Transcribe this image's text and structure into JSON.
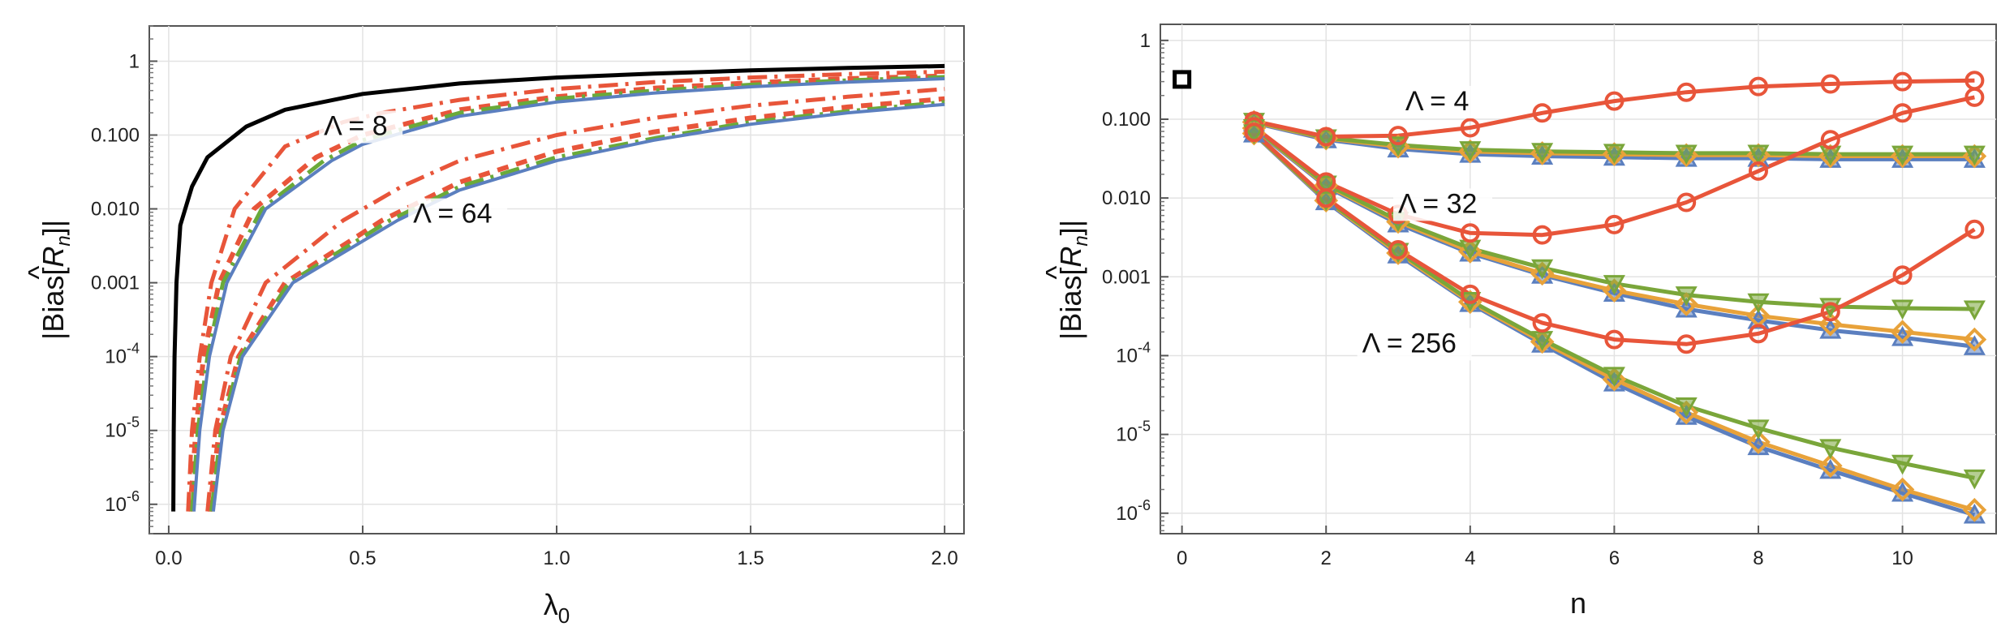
{
  "chart_data": [
    {
      "type": "line",
      "xscale": "linear",
      "yscale": "log",
      "xlim": [
        -0.05,
        2.05
      ],
      "ylim": [
        4e-07,
        3
      ],
      "xlabel": "λ",
      "xlabel_sub": "0",
      "ylabel_parts": {
        "pre": "|Bias[",
        "hat": "^",
        "R": "R",
        "sub": "n",
        "post": "]|"
      },
      "grid": true,
      "xticks": [
        0,
        0.5,
        1,
        1.5,
        2
      ],
      "xtick_labels": [
        "0.0",
        "0.5",
        "1.0",
        "1.5",
        "2.0"
      ],
      "yticks": [
        {
          "value": 1e-06,
          "mant": "10",
          "exp": "-6"
        },
        {
          "value": 1e-05,
          "mant": "10",
          "exp": "-5"
        },
        {
          "value": 0.0001,
          "mant": "10",
          "exp": "-4"
        },
        {
          "value": 0.001,
          "text": "0.001"
        },
        {
          "value": 0.01,
          "text": "0.010"
        },
        {
          "value": 0.1,
          "text": "0.100"
        },
        {
          "value": 1,
          "text": "1"
        }
      ],
      "annotations": [
        {
          "text": "Λ = 8",
          "x": 0.4,
          "y": 0.1
        },
        {
          "text": "Λ = 64",
          "x": 0.63,
          "y": 0.0065
        }
      ],
      "series": [
        {
          "color": "#000000",
          "style": "solid",
          "width": 5,
          "points": [
            [
              0.012,
              8e-07
            ],
            [
              0.013,
              1e-05
            ],
            [
              0.015,
              0.0001
            ],
            [
              0.02,
              0.001
            ],
            [
              0.03,
              0.006
            ],
            [
              0.06,
              0.02
            ],
            [
              0.1,
              0.05
            ],
            [
              0.2,
              0.13
            ],
            [
              0.3,
              0.22
            ],
            [
              0.5,
              0.36
            ],
            [
              0.75,
              0.5
            ],
            [
              1.0,
              0.6
            ],
            [
              1.25,
              0.68
            ],
            [
              1.5,
              0.75
            ],
            [
              1.75,
              0.81
            ],
            [
              2.0,
              0.86
            ]
          ]
        },
        {
          "color": "#e8553a",
          "style": "dashdot",
          "width": 5,
          "points": [
            [
              0.05,
              8e-07
            ],
            [
              0.06,
              1e-05
            ],
            [
              0.08,
              0.0001
            ],
            [
              0.11,
              0.001
            ],
            [
              0.17,
              0.01
            ],
            [
              0.3,
              0.07
            ],
            [
              0.45,
              0.15
            ],
            [
              0.55,
              0.2
            ],
            [
              0.75,
              0.3
            ],
            [
              1.0,
              0.42
            ],
            [
              1.25,
              0.52
            ],
            [
              1.5,
              0.6
            ],
            [
              1.75,
              0.67
            ],
            [
              2.0,
              0.72
            ]
          ]
        },
        {
          "color": "#e8553a",
          "style": "dashed",
          "width": 6,
          "points": [
            [
              0.055,
              8e-07
            ],
            [
              0.07,
              1e-05
            ],
            [
              0.09,
              0.0001
            ],
            [
              0.13,
              0.001
            ],
            [
              0.22,
              0.01
            ],
            [
              0.38,
              0.05
            ],
            [
              0.5,
              0.1
            ],
            [
              0.75,
              0.22
            ],
            [
              1.0,
              0.33
            ],
            [
              1.25,
              0.43
            ],
            [
              1.5,
              0.51
            ],
            [
              1.75,
              0.58
            ],
            [
              2.0,
              0.63
            ]
          ]
        },
        {
          "color": "#6aaa3a",
          "style": "dashdot",
          "width": 5,
          "points": [
            [
              0.06,
              8e-07
            ],
            [
              0.075,
              1e-05
            ],
            [
              0.1,
              0.0001
            ],
            [
              0.14,
              0.001
            ],
            [
              0.24,
              0.01
            ],
            [
              0.4,
              0.045
            ],
            [
              0.5,
              0.085
            ],
            [
              0.75,
              0.2
            ],
            [
              1.0,
              0.31
            ],
            [
              1.25,
              0.4
            ],
            [
              1.5,
              0.48
            ],
            [
              1.75,
              0.55
            ],
            [
              2.0,
              0.61
            ]
          ]
        },
        {
          "color": "#5b7fbf",
          "style": "solid",
          "width": 4,
          "points": [
            [
              0.065,
              8e-07
            ],
            [
              0.08,
              1e-05
            ],
            [
              0.105,
              0.0001
            ],
            [
              0.15,
              0.001
            ],
            [
              0.25,
              0.01
            ],
            [
              0.42,
              0.045
            ],
            [
              0.5,
              0.075
            ],
            [
              0.75,
              0.18
            ],
            [
              1.0,
              0.28
            ],
            [
              1.25,
              0.37
            ],
            [
              1.5,
              0.45
            ],
            [
              1.75,
              0.52
            ],
            [
              2.0,
              0.58
            ]
          ]
        },
        {
          "color": "#e8553a",
          "style": "dashdot",
          "width": 5,
          "points": [
            [
              0.1,
              8e-07
            ],
            [
              0.12,
              1e-05
            ],
            [
              0.16,
              0.0001
            ],
            [
              0.25,
              0.001
            ],
            [
              0.45,
              0.007
            ],
            [
              0.6,
              0.02
            ],
            [
              0.75,
              0.045
            ],
            [
              1.0,
              0.1
            ],
            [
              1.25,
              0.17
            ],
            [
              1.5,
              0.25
            ],
            [
              1.75,
              0.33
            ],
            [
              2.0,
              0.42
            ]
          ]
        },
        {
          "color": "#e8553a",
          "style": "dashed",
          "width": 6,
          "points": [
            [
              0.105,
              8e-07
            ],
            [
              0.13,
              1e-05
            ],
            [
              0.18,
              0.0001
            ],
            [
              0.3,
              0.001
            ],
            [
              0.55,
              0.007
            ],
            [
              0.75,
              0.023
            ],
            [
              1.0,
              0.06
            ],
            [
              1.25,
              0.11
            ],
            [
              1.5,
              0.17
            ],
            [
              1.75,
              0.24
            ],
            [
              2.0,
              0.31
            ]
          ]
        },
        {
          "color": "#6aaa3a",
          "style": "dashdot",
          "width": 5,
          "points": [
            [
              0.11,
              8e-07
            ],
            [
              0.135,
              1e-05
            ],
            [
              0.185,
              0.0001
            ],
            [
              0.31,
              0.001
            ],
            [
              0.57,
              0.007
            ],
            [
              0.75,
              0.02
            ],
            [
              1.0,
              0.05
            ],
            [
              1.25,
              0.09
            ],
            [
              1.5,
              0.15
            ],
            [
              1.75,
              0.21
            ],
            [
              2.0,
              0.28
            ]
          ]
        },
        {
          "color": "#5b7fbf",
          "style": "solid",
          "width": 4,
          "points": [
            [
              0.115,
              8e-07
            ],
            [
              0.14,
              1e-05
            ],
            [
              0.19,
              0.0001
            ],
            [
              0.32,
              0.001
            ],
            [
              0.59,
              0.007
            ],
            [
              0.75,
              0.018
            ],
            [
              1.0,
              0.045
            ],
            [
              1.25,
              0.085
            ],
            [
              1.5,
              0.14
            ],
            [
              1.75,
              0.2
            ],
            [
              2.0,
              0.26
            ]
          ]
        }
      ]
    },
    {
      "type": "line",
      "xscale": "linear",
      "yscale": "log",
      "xlim": [
        -0.3,
        11.3
      ],
      "ylim": [
        5.5e-07,
        1.6
      ],
      "xlabel": "n",
      "ylabel_parts": {
        "pre": "|Bias[",
        "hat": "^",
        "R": "R",
        "sub": "n",
        "post": "]|"
      },
      "grid": true,
      "xticks": [
        0,
        2,
        4,
        6,
        8,
        10
      ],
      "xtick_labels": [
        "0",
        "2",
        "4",
        "6",
        "8",
        "10"
      ],
      "yticks": [
        {
          "value": 1e-06,
          "mant": "10",
          "exp": "-6"
        },
        {
          "value": 1e-05,
          "mant": "10",
          "exp": "-5"
        },
        {
          "value": 0.0001,
          "mant": "10",
          "exp": "-4"
        },
        {
          "value": 0.001,
          "text": "0.001"
        },
        {
          "value": 0.01,
          "text": "0.010"
        },
        {
          "value": 0.1,
          "text": "0.100"
        },
        {
          "value": 1,
          "text": "1"
        }
      ],
      "annotations": [
        {
          "text": "Λ = 4",
          "x": 3.1,
          "y": 0.13
        },
        {
          "text": "Λ = 32",
          "x": 3.0,
          "y": 0.0065
        },
        {
          "text": "Λ = 256",
          "x": 2.5,
          "y": 0.00011
        }
      ],
      "square_marker": {
        "x": 0,
        "y": 0.32
      },
      "colors": {
        "blue": "#5b7fbf",
        "orange": "#e8a23a",
        "green": "#7aa63a",
        "red": "#e8553a"
      },
      "series": [
        {
          "group": "Λ = 4",
          "color": "#5b7fbf",
          "marker": "triangle-up",
          "x": [
            1,
            2,
            3,
            4,
            5,
            6,
            7,
            8,
            9,
            10,
            11
          ],
          "y": [
            0.09,
            0.055,
            0.042,
            0.036,
            0.034,
            0.033,
            0.032,
            0.032,
            0.031,
            0.031,
            0.031
          ]
        },
        {
          "group": "Λ = 4",
          "color": "#e8a23a",
          "marker": "diamond",
          "x": [
            1,
            2,
            3,
            4,
            5,
            6,
            7,
            8,
            9,
            10,
            11
          ],
          "y": [
            0.092,
            0.057,
            0.045,
            0.039,
            0.037,
            0.036,
            0.035,
            0.035,
            0.034,
            0.034,
            0.034
          ]
        },
        {
          "group": "Λ = 4",
          "color": "#7aa63a",
          "marker": "triangle-down",
          "x": [
            1,
            2,
            3,
            4,
            5,
            6,
            7,
            8,
            9,
            10,
            11
          ],
          "y": [
            0.094,
            0.058,
            0.047,
            0.041,
            0.039,
            0.038,
            0.037,
            0.037,
            0.036,
            0.036,
            0.036
          ]
        },
        {
          "group": "Λ = 4",
          "color": "#e8553a",
          "marker": "circle",
          "x": [
            1,
            2,
            3,
            4,
            5,
            6,
            7,
            8,
            9,
            10,
            11
          ],
          "y": [
            0.095,
            0.06,
            0.062,
            0.078,
            0.12,
            0.17,
            0.22,
            0.26,
            0.28,
            0.3,
            0.31
          ]
        },
        {
          "group": "Λ = 32",
          "color": "#5b7fbf",
          "marker": "triangle-up",
          "x": [
            1,
            2,
            3,
            4,
            5,
            6,
            7,
            8,
            9,
            10,
            11
          ],
          "y": [
            0.075,
            0.014,
            0.0047,
            0.002,
            0.00105,
            0.00062,
            0.00039,
            0.00028,
            0.00021,
            0.00017,
            0.00013
          ]
        },
        {
          "group": "Λ = 32",
          "color": "#e8a23a",
          "marker": "diamond",
          "x": [
            1,
            2,
            3,
            4,
            5,
            6,
            7,
            8,
            9,
            10,
            11
          ],
          "y": [
            0.077,
            0.0145,
            0.005,
            0.0021,
            0.0011,
            0.00067,
            0.00045,
            0.00032,
            0.00025,
            0.0002,
            0.00016
          ]
        },
        {
          "group": "Λ = 32",
          "color": "#7aa63a",
          "marker": "triangle-down",
          "x": [
            1,
            2,
            3,
            4,
            5,
            6,
            7,
            8,
            9,
            10,
            11
          ],
          "y": [
            0.078,
            0.015,
            0.0052,
            0.0023,
            0.0013,
            0.00082,
            0.00059,
            0.00048,
            0.00042,
            0.0004,
            0.00039
          ]
        },
        {
          "group": "Λ = 32",
          "color": "#e8553a",
          "marker": "circle",
          "x": [
            1,
            2,
            3,
            4,
            5,
            6,
            7,
            8,
            9,
            10,
            11
          ],
          "y": [
            0.08,
            0.016,
            0.0062,
            0.0036,
            0.0034,
            0.0046,
            0.0088,
            0.022,
            0.055,
            0.12,
            0.19
          ]
        },
        {
          "group": "Λ = 256",
          "color": "#5b7fbf",
          "marker": "triangle-up",
          "x": [
            1,
            2,
            3,
            4,
            5,
            6,
            7,
            8,
            9,
            10,
            11
          ],
          "y": [
            0.065,
            0.009,
            0.0019,
            0.00046,
            0.00014,
            4.5e-05,
            1.7e-05,
            7e-06,
            3.5e-06,
            1.8e-06,
            9.5e-07
          ]
        },
        {
          "group": "Λ = 256",
          "color": "#e8a23a",
          "marker": "diamond",
          "x": [
            1,
            2,
            3,
            4,
            5,
            6,
            7,
            8,
            9,
            10,
            11
          ],
          "y": [
            0.066,
            0.0093,
            0.002,
            0.00048,
            0.00015,
            5e-05,
            1.9e-05,
            8e-06,
            4e-06,
            2e-06,
            1.1e-06
          ]
        },
        {
          "group": "Λ = 256",
          "color": "#7aa63a",
          "marker": "triangle-down",
          "x": [
            1,
            2,
            3,
            4,
            5,
            6,
            7,
            8,
            9,
            10,
            11
          ],
          "y": [
            0.067,
            0.0095,
            0.0021,
            0.0005,
            0.00016,
            5.6e-05,
            2.3e-05,
            1.2e-05,
            6.8e-06,
            4.3e-06,
            2.8e-06
          ]
        },
        {
          "group": "Λ = 256",
          "color": "#e8553a",
          "marker": "circle",
          "x": [
            1,
            2,
            3,
            4,
            5,
            6,
            7,
            8,
            9,
            10,
            11
          ],
          "y": [
            0.068,
            0.01,
            0.0022,
            0.0006,
            0.00026,
            0.00016,
            0.00014,
            0.00019,
            0.00036,
            0.00105,
            0.004
          ]
        }
      ]
    }
  ]
}
